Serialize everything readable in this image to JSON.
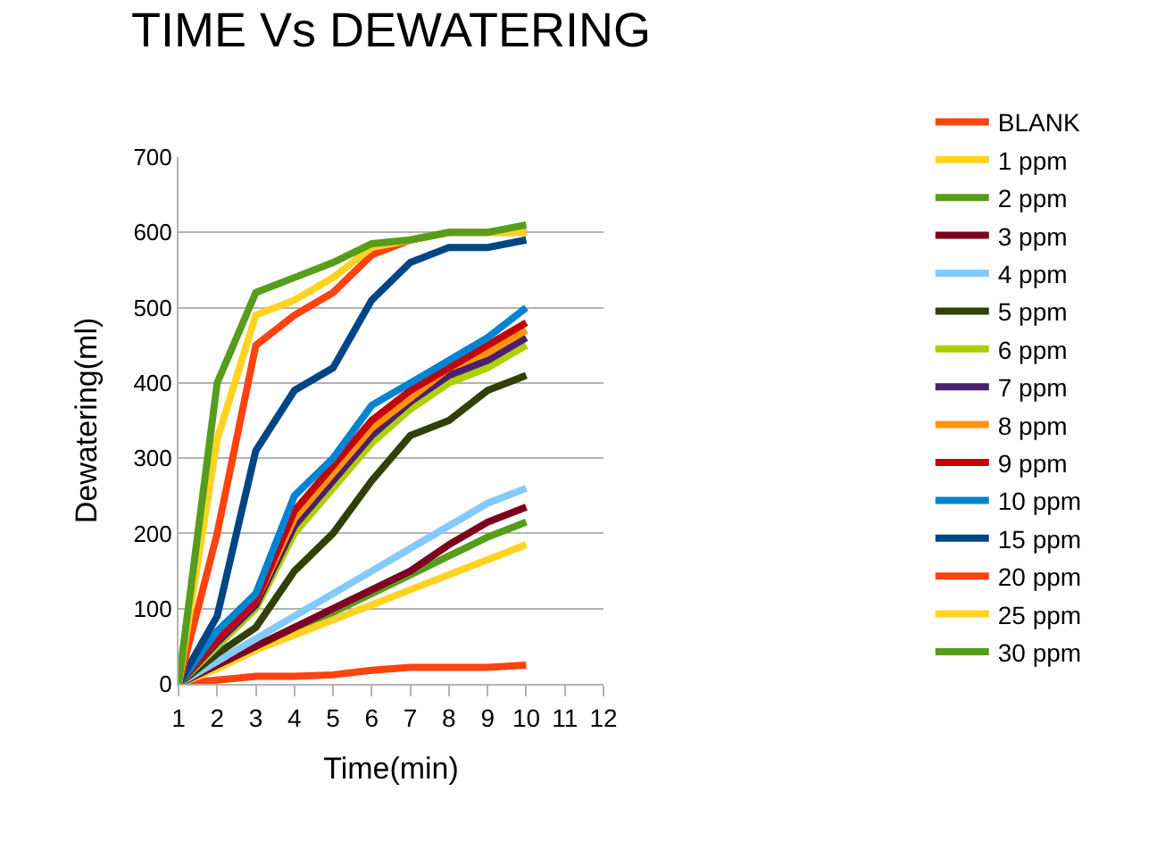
{
  "chart_data": {
    "type": "line",
    "title": "TIME Vs DEWATERING",
    "xlabel": "Time(min)",
    "ylabel": "Dewatering(ml)",
    "x": [
      1,
      2,
      3,
      4,
      5,
      6,
      7,
      8,
      9,
      10
    ],
    "xlim": [
      1,
      12
    ],
    "xticks": [
      1,
      2,
      3,
      4,
      5,
      6,
      7,
      8,
      9,
      10,
      11,
      12
    ],
    "ylim": [
      0,
      700
    ],
    "yticks": [
      0,
      100,
      200,
      300,
      400,
      500,
      600,
      700
    ],
    "grid": "y",
    "legend": "right",
    "marker": "none",
    "line_style": "solid",
    "series": [
      {
        "name": "BLANK",
        "color": "#ff420e",
        "values": [
          0,
          5,
          10,
          10,
          12,
          18,
          22,
          22,
          22,
          25
        ]
      },
      {
        "name": "1 ppm",
        "color": "#ffd320",
        "values": [
          0,
          20,
          45,
          65,
          85,
          105,
          125,
          145,
          165,
          185
        ]
      },
      {
        "name": "2 ppm",
        "color": "#579d1c",
        "values": [
          0,
          25,
          50,
          75,
          95,
          120,
          145,
          170,
          195,
          215
        ]
      },
      {
        "name": "3 ppm",
        "color": "#7e0021",
        "values": [
          0,
          25,
          50,
          75,
          100,
          125,
          150,
          185,
          215,
          235
        ]
      },
      {
        "name": "4 ppm",
        "color": "#83caff",
        "values": [
          0,
          30,
          60,
          90,
          120,
          150,
          180,
          210,
          240,
          260
        ]
      },
      {
        "name": "5 ppm",
        "color": "#314004",
        "values": [
          0,
          40,
          75,
          150,
          200,
          270,
          330,
          350,
          390,
          410
        ]
      },
      {
        "name": "6 ppm",
        "color": "#aecf00",
        "values": [
          0,
          50,
          100,
          200,
          260,
          320,
          365,
          400,
          420,
          450
        ]
      },
      {
        "name": "7 ppm",
        "color": "#4b1f6f",
        "values": [
          0,
          55,
          105,
          210,
          270,
          330,
          375,
          410,
          430,
          460
        ]
      },
      {
        "name": "8 ppm",
        "color": "#ff950e",
        "values": [
          0,
          60,
          110,
          220,
          280,
          340,
          380,
          420,
          440,
          470
        ]
      },
      {
        "name": "9 ppm",
        "color": "#c5000b",
        "values": [
          0,
          60,
          110,
          230,
          290,
          350,
          390,
          420,
          450,
          480
        ]
      },
      {
        "name": "10 ppm",
        "color": "#0084d1",
        "values": [
          0,
          70,
          120,
          250,
          300,
          370,
          400,
          430,
          460,
          500
        ]
      },
      {
        "name": "15 ppm",
        "color": "#004586",
        "values": [
          0,
          90,
          310,
          390,
          420,
          510,
          560,
          580,
          580,
          590
        ]
      },
      {
        "name": "20 ppm",
        "color": "#ff420e",
        "values": [
          0,
          200,
          450,
          490,
          520,
          570,
          590,
          600,
          600,
          600
        ]
      },
      {
        "name": "25 ppm",
        "color": "#ffd320",
        "values": [
          0,
          325,
          490,
          510,
          540,
          580,
          590,
          600,
          600,
          600
        ]
      },
      {
        "name": "30 ppm",
        "color": "#579d1c",
        "values": [
          0,
          400,
          520,
          540,
          560,
          585,
          590,
          600,
          600,
          610
        ]
      }
    ]
  }
}
